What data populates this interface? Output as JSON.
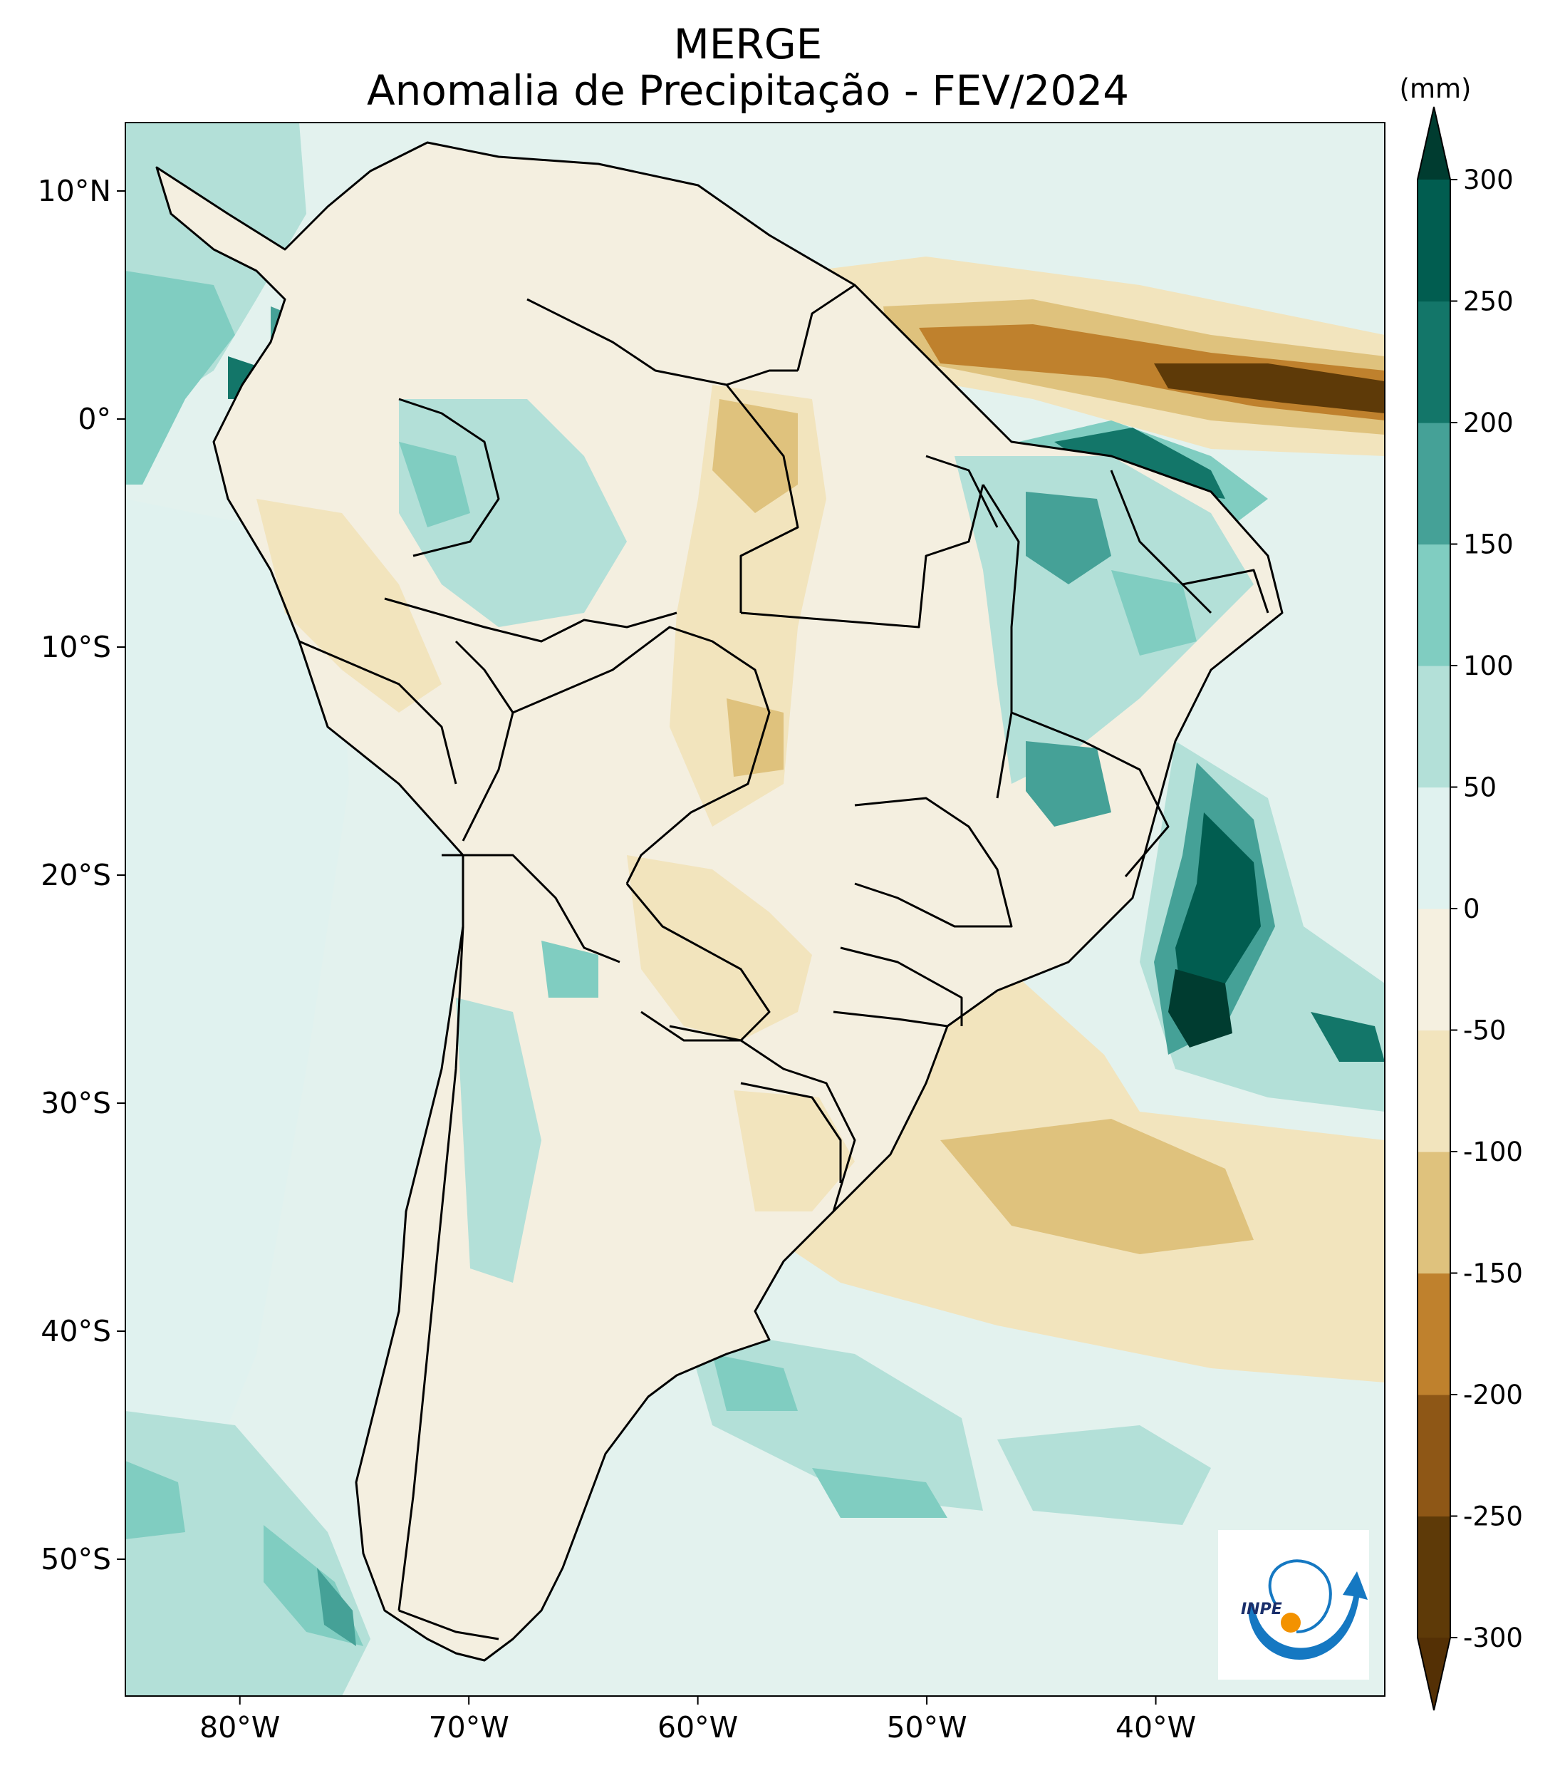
{
  "title": {
    "line1": "MERGE",
    "line2": "Anomalia de Precipitação - FEV/2024"
  },
  "map": {
    "lon_range": [
      -85,
      -30
    ],
    "lat_range": [
      -56,
      13
    ],
    "lon_ticks": [
      {
        "value": -80,
        "label": "80°W"
      },
      {
        "value": -70,
        "label": "70°W"
      },
      {
        "value": -60,
        "label": "60°W"
      },
      {
        "value": -50,
        "label": "50°W"
      },
      {
        "value": -40,
        "label": "40°W"
      }
    ],
    "lat_ticks": [
      {
        "value": 10,
        "label": "10°N"
      },
      {
        "value": 0,
        "label": "0°"
      },
      {
        "value": -10,
        "label": "10°S"
      },
      {
        "value": -20,
        "label": "20°S"
      },
      {
        "value": -30,
        "label": "30°S"
      },
      {
        "value": -40,
        "label": "40°S"
      },
      {
        "value": -50,
        "label": "50°S"
      }
    ]
  },
  "colorbar": {
    "unit": "(mm)",
    "levels": [
      -300,
      -250,
      -200,
      -150,
      -100,
      -50,
      0,
      50,
      100,
      150,
      200,
      250,
      300
    ],
    "labels": [
      "-300",
      "-250",
      "-200",
      "-150",
      "-100",
      "-50",
      "0",
      "50",
      "100",
      "150",
      "200",
      "250",
      "300"
    ],
    "colors": [
      "#5e3a08",
      "#8e5716",
      "#bf812d",
      "#dfc27d",
      "#f2e4bd",
      "#f5f0e0",
      "#e0f2ef",
      "#b3e0d8",
      "#80cdc1",
      "#45a197",
      "#137669",
      "#015d50"
    ],
    "under_color": "#543005",
    "over_color": "#003c30"
  },
  "logo": {
    "text": "INPE",
    "blue": "#1578c2",
    "orange": "#f39200"
  },
  "palette": {
    "ocean_base": "#e3f2ee",
    "land_base": "#f4efe0",
    "border": "#000000"
  }
}
